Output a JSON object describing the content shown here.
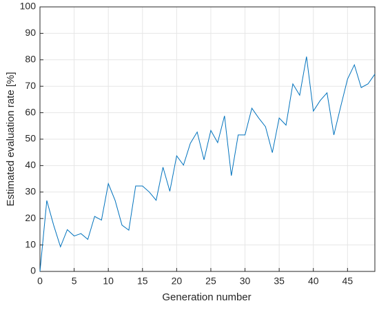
{
  "chart_data": {
    "type": "line",
    "x_label": "Generation number",
    "y_label": "Estimated evaluation rate [%]",
    "x": [
      0,
      1,
      2,
      3,
      4,
      5,
      6,
      7,
      8,
      9,
      10,
      11,
      12,
      13,
      14,
      15,
      16,
      17,
      18,
      19,
      20,
      21,
      22,
      23,
      24,
      25,
      26,
      27,
      28,
      29,
      30,
      31,
      32,
      33,
      34,
      35,
      36,
      37,
      38,
      39,
      40,
      41,
      42,
      43,
      44,
      45,
      46,
      47,
      48,
      49
    ],
    "values": [
      0,
      26.8,
      17.5,
      9.3,
      15.8,
      13.4,
      14.3,
      12.1,
      20.8,
      19.4,
      33.2,
      26.8,
      17.5,
      15.6,
      32.3,
      32.3,
      30.0,
      26.9,
      39.4,
      30.3,
      43.7,
      40.2,
      48.4,
      52.7,
      42.2,
      53.3,
      48.7,
      58.8,
      36.2,
      51.6,
      51.6,
      61.7,
      58.0,
      54.7,
      44.9,
      58.0,
      55.3,
      70.9,
      66.6,
      81.2,
      60.6,
      64.6,
      67.5,
      51.6,
      62.3,
      72.7,
      78.1,
      69.5,
      70.9,
      74.6
    ],
    "color": "#0072bd",
    "xlim": [
      0,
      49
    ],
    "xticks": [
      0,
      5,
      10,
      15,
      20,
      25,
      30,
      35,
      40,
      45
    ],
    "ylim": [
      0,
      100
    ],
    "yticks": [
      0,
      10,
      20,
      30,
      40,
      50,
      60,
      70,
      80,
      90,
      100
    ],
    "grid": true
  }
}
